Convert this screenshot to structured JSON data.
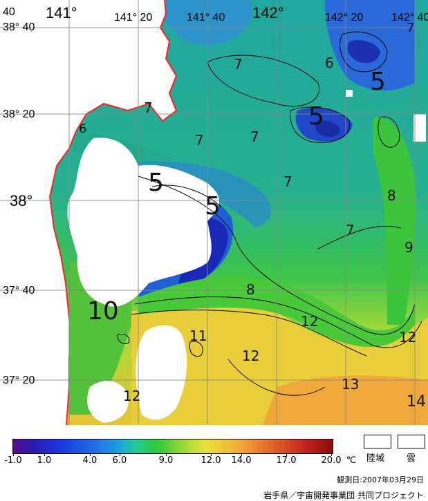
{
  "map": {
    "lon_labels": [
      "141°",
      "141° 20",
      "141° 40",
      "142°",
      "142° 20",
      "142° 40"
    ],
    "lat_labels": [
      "38° 40",
      "38° 20",
      "38°",
      "37° 40",
      "37° 20"
    ],
    "corner_label": "40",
    "contour_labels": [
      "7",
      "6",
      "5",
      "5",
      "7",
      "7",
      "6",
      "7",
      "7",
      "5",
      "5",
      "8",
      "7",
      "9",
      "8",
      "7",
      "10",
      "12",
      "12",
      "11",
      "12",
      "12",
      "13",
      "14"
    ]
  },
  "legend": {
    "ticks": [
      "-1.0",
      "1.0",
      "4.0",
      "6.0",
      "9.0",
      "12.0",
      "14.0",
      "17.0",
      "20.0"
    ],
    "unit": "℃",
    "land_label": "陸域",
    "cloud_label": "雲",
    "colors": {
      "min": "#5b0a8c",
      "mid": "#2fc93a",
      "max": "#8a0c0c",
      "land": "#ffffff",
      "coastline": "#ff2020"
    }
  },
  "observation_date": "観測日:2007年03月29日",
  "credit": "岩手県／宇宙開発事業団 共同プロジェクト"
}
